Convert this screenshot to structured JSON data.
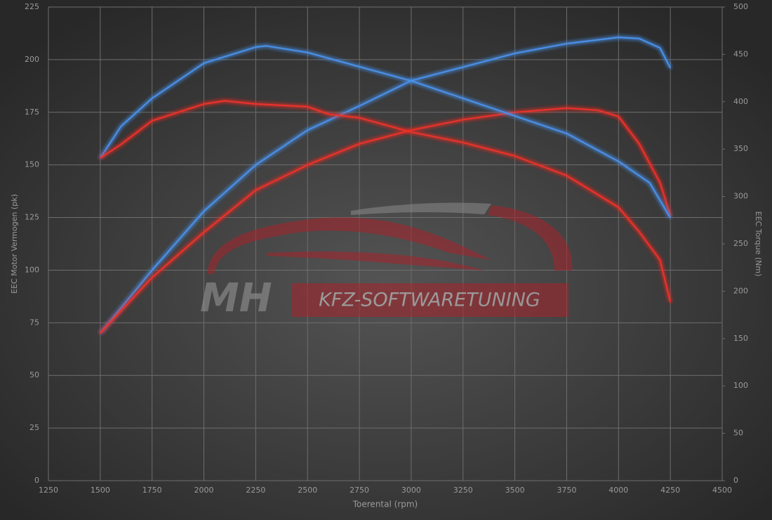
{
  "chart_data": {
    "type": "line",
    "xlabel": "Toerental (rpm)",
    "ylabel": "EEC Motor Vermogen (pk)",
    "y2label": "EEC Torque (Nm)",
    "watermark": [
      "MH",
      "KFZ-SOFTWARETUNING"
    ],
    "xlim": [
      1250,
      4500
    ],
    "xticks": [
      1250,
      1500,
      1750,
      2000,
      2250,
      2500,
      2750,
      3000,
      3250,
      3500,
      3750,
      4000,
      4250,
      4500
    ],
    "ylim": [
      0,
      225
    ],
    "yticks": [
      0,
      25,
      50,
      75,
      100,
      125,
      150,
      175,
      200,
      225
    ],
    "y2lim": [
      0,
      500
    ],
    "y2ticks": [
      0,
      50,
      100,
      150,
      200,
      250,
      300,
      350,
      400,
      450,
      500
    ],
    "grid": true,
    "series": [
      {
        "color": "#4a8fe6",
        "x": [
          1500,
          1750,
          2000,
          2250,
          2500,
          2750,
          3000,
          3250,
          3500,
          3750,
          4000,
          4100,
          4200,
          4250
        ],
        "values": [
          70,
          100,
          128,
          150,
          166.5,
          178,
          190,
          196.5,
          203,
          207.6,
          210.6,
          210,
          205.6,
          196
        ]
      },
      {
        "color": "#e8302c",
        "x": [
          1500,
          1750,
          2000,
          2250,
          2500,
          2750,
          3000,
          3250,
          3500,
          3750,
          3900,
          4000,
          4100,
          4200,
          4250
        ],
        "values": [
          70,
          96.5,
          118,
          138,
          150,
          160,
          166.5,
          171.5,
          175,
          177,
          176,
          173,
          160,
          141.5,
          126
        ]
      },
      {
        "color": "#4a8fe6",
        "axis": "y2",
        "x": [
          1500,
          1600,
          1750,
          2000,
          2250,
          2300,
          2500,
          2750,
          3000,
          3250,
          3500,
          3750,
          4000,
          4150,
          4250
        ],
        "values": [
          340.5,
          374,
          403.6,
          440.7,
          457.7,
          459,
          452,
          437,
          422,
          403.6,
          385,
          366.5,
          337,
          314.5,
          277.5
        ]
      },
      {
        "color": "#e8302c",
        "axis": "y2",
        "x": [
          1500,
          1600,
          1750,
          2000,
          2100,
          2250,
          2500,
          2600,
          2750,
          3000,
          3250,
          3500,
          3750,
          4000,
          4100,
          4200,
          4250
        ],
        "values": [
          340.5,
          355,
          380,
          397.6,
          401,
          397.6,
          394.7,
          387,
          383,
          368,
          357,
          342.7,
          322,
          288.6,
          262.6,
          233,
          188.4
        ]
      }
    ]
  }
}
